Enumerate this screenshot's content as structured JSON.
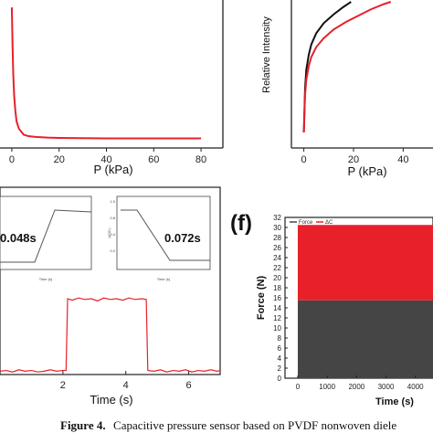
{
  "colors": {
    "red": "#e8202a",
    "black": "#111111",
    "dark_gray": "#454545",
    "axis": "#222222"
  },
  "caption": {
    "label": "Figure 4.",
    "text": "Capacitive pressure sensor based on PVDF nonwoven diele"
  },
  "chart_data": [
    {
      "panel": "top-left",
      "type": "line",
      "xlabel": "P (kPa)",
      "ylabel": "",
      "xlim": [
        -5,
        85
      ],
      "x_ticks": [
        0,
        20,
        40,
        60,
        80
      ],
      "series": [
        {
          "color": "#e8202a",
          "x": [
            0.0,
            0.3,
            0.6,
            1.0,
            1.5,
            2.0,
            3.0,
            4.0,
            5.0,
            7.0,
            10.0,
            15.0,
            20.0,
            30.0,
            40.0,
            50.0,
            60.0,
            70.0,
            80.0
          ],
          "y": [
            0.95,
            0.7,
            0.5,
            0.35,
            0.25,
            0.18,
            0.13,
            0.11,
            0.09,
            0.08,
            0.075,
            0.07,
            0.068,
            0.066,
            0.065,
            0.065,
            0.065,
            0.065,
            0.065
          ]
        }
      ]
    },
    {
      "panel": "top-right",
      "type": "line",
      "xlabel": "P (kPa)",
      "ylabel": "Relative Intensity",
      "xlim": [
        -5,
        52
      ],
      "x_ticks": [
        0,
        20,
        40
      ],
      "series": [
        {
          "color": "#111111",
          "x": [
            0,
            0.5,
            1,
            2,
            3,
            5,
            8,
            12,
            16,
            19
          ],
          "y": [
            0.0,
            0.35,
            0.5,
            0.62,
            0.7,
            0.79,
            0.87,
            0.94,
            1.0,
            1.04
          ]
        },
        {
          "color": "#e8202a",
          "x": [
            0,
            0.5,
            1,
            2,
            3,
            5,
            8,
            12,
            17,
            22,
            27,
            32,
            35
          ],
          "y": [
            0.0,
            0.3,
            0.42,
            0.53,
            0.6,
            0.68,
            0.75,
            0.82,
            0.88,
            0.93,
            0.98,
            1.02,
            1.04
          ]
        }
      ]
    },
    {
      "panel": "bottom-left",
      "type": "line",
      "xlabel": "Time (s)",
      "ylabel": "",
      "xlim": [
        0,
        7
      ],
      "x_ticks": [
        2,
        4,
        6
      ],
      "annotations": [
        "0.048s",
        "0.072s"
      ],
      "series": [
        {
          "color": "#e8202a",
          "x": [
            0.0,
            0.2,
            0.4,
            0.6,
            0.8,
            1.0,
            1.2,
            1.4,
            1.6,
            1.8,
            2.0,
            2.1,
            2.15,
            2.3,
            2.5,
            2.7,
            2.9,
            3.1,
            3.3,
            3.5,
            3.7,
            3.9,
            4.1,
            4.3,
            4.5,
            4.65,
            4.7,
            4.9,
            5.1,
            5.3,
            5.5,
            5.7,
            5.9,
            6.1,
            6.3,
            6.5,
            6.7,
            6.9,
            7.0
          ],
          "y": [
            0.02,
            0.03,
            0.01,
            0.04,
            0.02,
            0.03,
            0.01,
            0.02,
            0.04,
            0.02,
            0.03,
            0.03,
            1.0,
            0.98,
            1.01,
            0.99,
            1.0,
            0.97,
            1.01,
            0.99,
            1.0,
            0.98,
            1.01,
            0.99,
            1.0,
            0.99,
            0.03,
            0.02,
            0.04,
            0.01,
            0.03,
            0.02,
            0.04,
            0.01,
            0.03,
            0.02,
            0.04,
            0.02,
            0.03
          ]
        }
      ],
      "insets": [
        {
          "x_ticks": [
            "",
            "",
            "",
            "",
            ""
          ],
          "xlabel": "Time (s)",
          "series_shape": "rise"
        },
        {
          "x_ticks": [
            "",
            "",
            "",
            "",
            ""
          ],
          "xlabel": "Time (s)",
          "series_shape": "fall"
        }
      ]
    },
    {
      "panel": "f",
      "panel_letter": "(f)",
      "type": "area",
      "xlabel": "Time (s)",
      "ylabel": "Force (N)",
      "xlim": [
        0,
        4600
      ],
      "ylim": [
        0,
        32
      ],
      "x_ticks": [
        0,
        1000,
        2000,
        3000,
        4000
      ],
      "y_ticks": [
        0,
        2,
        4,
        6,
        8,
        10,
        12,
        14,
        16,
        18,
        20,
        22,
        24,
        26,
        28,
        30,
        32
      ],
      "legend": {
        "placement": "top-left",
        "entries": [
          {
            "label": "Force",
            "color": "#454545"
          },
          {
            "label": "ΔC",
            "color": "#e8202a"
          }
        ]
      },
      "series": [
        {
          "name": "Force",
          "color": "#454545",
          "x_range": [
            0,
            4600
          ],
          "y_min": 0,
          "y_max": 15.5
        },
        {
          "name": "ΔC",
          "color": "#e8202a",
          "x_range": [
            0,
            4600
          ],
          "y_min": 15.5,
          "y_max": 30.5
        }
      ]
    }
  ]
}
